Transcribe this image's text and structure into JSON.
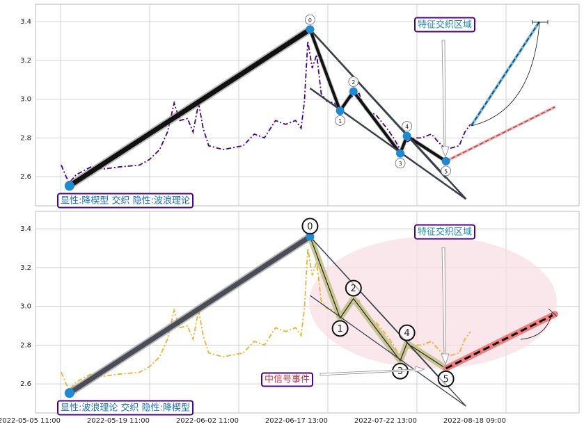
{
  "chart_data": [
    {
      "type": "line",
      "xlim": [
        -22.5,
        465.6
      ],
      "ylim": [
        2.45,
        3.49
      ],
      "yticks": [
        2.6,
        2.8,
        {
          "value": 3,
          "label": "3.0"
        },
        3.2,
        3.4
      ],
      "xgrid": [
        0,
        80,
        160,
        240,
        320,
        400
      ],
      "x": [
        0.6,
        5,
        8,
        14,
        27,
        39,
        52,
        71,
        80,
        89,
        96,
        102,
        107,
        114,
        119,
        124,
        128,
        133,
        146,
        164,
        174,
        183,
        193,
        202,
        211,
        216,
        219,
        222,
        226,
        230,
        234,
        239,
        246,
        251,
        255,
        261,
        268,
        274,
        283,
        293,
        299,
        305,
        311,
        318,
        324,
        333,
        339,
        346,
        352,
        358,
        363,
        368
      ],
      "series": [
        {
          "color": "#4b0082",
          "style": "dashdot",
          "values": [
            2.66,
            2.6,
            2.57,
            2.61,
            2.65,
            2.64,
            2.65,
            2.66,
            2.69,
            2.74,
            2.83,
            2.98,
            2.89,
            2.9,
            2.83,
            2.98,
            2.85,
            2.76,
            2.74,
            2.76,
            2.82,
            2.8,
            2.89,
            2.87,
            2.89,
            2.85,
            2.99,
            3.3,
            3.16,
            3.23,
            3.03,
            2.99,
            2.98,
            2.92,
            2.98,
            3.01,
            3.03,
            2.94,
            2.92,
            2.85,
            2.8,
            2.74,
            2.78,
            2.8,
            2.8,
            2.82,
            2.78,
            2.74,
            2.75,
            2.76,
            2.83,
            2.87
          ]
        }
      ],
      "lines": [
        {
          "x": [
            8,
            224
          ],
          "values": [
            2.553,
            3.36
          ],
          "color": "#111111",
          "style": "thick"
        },
        {
          "x": [
            224,
            251,
            263,
            305,
            311,
            346
          ],
          "values": [
            3.36,
            2.94,
            3.04,
            2.72,
            2.81,
            2.68
          ],
          "color": "#111111",
          "style": "thick"
        },
        {
          "x": [
            224,
            364
          ],
          "values": [
            3.36,
            2.485
          ],
          "color": "#3a3f4e",
          "style": "solid"
        },
        {
          "x": [
            224,
            364
          ],
          "values": [
            3.056,
            2.485
          ],
          "color": "#3a3f4e",
          "style": "solid"
        },
        {
          "x": [
            224,
            346
          ],
          "values": [
            3.36,
            2.593
          ],
          "color": "#3a3f4e",
          "style": "solid"
        },
        {
          "x": [
            369,
            430
          ],
          "values": [
            2.865,
            3.4
          ],
          "color": "#1f8ad0",
          "style": "dashed"
        },
        {
          "x": [
            346,
            444
          ],
          "values": [
            2.68,
            2.96
          ],
          "color": "#e07c7c",
          "style": "dashed"
        }
      ],
      "points": {
        "x": [
          8,
          224,
          251,
          263,
          305,
          311,
          346
        ],
        "values": [
          2.553,
          3.36,
          2.94,
          3.04,
          2.72,
          2.81,
          2.68
        ],
        "labels": [
          null,
          0,
          1,
          2,
          3,
          4,
          5
        ],
        "color": "#1f8ad0",
        "label_style": "small"
      },
      "annotations": {
        "pattern": "显性:降楔型 交织 隐性:波浪理论",
        "zone": "特征交织区域"
      }
    },
    {
      "type": "line",
      "xlim": [
        -22.5,
        465.6
      ],
      "ylim": [
        2.45,
        3.49
      ],
      "yticks": [
        2.6,
        2.8,
        {
          "value": 3,
          "label": "3.0"
        },
        3.2,
        3.4
      ],
      "xticks": [
        {
          "value": 0,
          "label": "2022-05-05 11:00"
        },
        {
          "value": 80,
          "label": "2022-05-19 11:00"
        },
        {
          "value": 160,
          "label": "2022-06-02 11:00"
        },
        {
          "value": 240,
          "label": "2022-06-17 13:00"
        },
        {
          "value": 320,
          "label": "2022-07-22 13:00"
        },
        {
          "value": 400,
          "label": "2022-08-18 09:00"
        }
      ],
      "x": [
        0.6,
        5,
        8,
        14,
        27,
        39,
        52,
        71,
        80,
        89,
        96,
        102,
        107,
        114,
        119,
        124,
        128,
        133,
        146,
        164,
        174,
        183,
        193,
        202,
        211,
        216,
        219,
        222,
        226,
        230,
        234,
        239,
        246,
        251,
        255,
        261,
        268,
        274,
        283,
        293,
        299,
        305,
        311,
        318,
        324,
        333,
        339,
        346,
        352,
        358,
        363,
        368
      ],
      "series": [
        {
          "color": "#f0b030",
          "style": "dashdot",
          "values": [
            2.66,
            2.6,
            2.57,
            2.61,
            2.65,
            2.64,
            2.65,
            2.66,
            2.69,
            2.74,
            2.83,
            2.98,
            2.89,
            2.9,
            2.83,
            2.98,
            2.85,
            2.76,
            2.74,
            2.76,
            2.82,
            2.8,
            2.89,
            2.87,
            2.89,
            2.85,
            2.99,
            3.3,
            3.16,
            3.23,
            3.03,
            2.99,
            2.98,
            2.92,
            2.98,
            3.01,
            3.03,
            2.94,
            2.92,
            2.85,
            2.8,
            2.74,
            2.78,
            2.8,
            2.8,
            2.82,
            2.78,
            2.74,
            2.75,
            2.76,
            2.83,
            2.87
          ]
        }
      ],
      "lines": [
        {
          "x": [
            8,
            224
          ],
          "values": [
            2.553,
            3.36
          ],
          "color": "#4a4d57",
          "style": "thick"
        },
        {
          "x": [
            224,
            251,
            263,
            305,
            311,
            346
          ],
          "values": [
            3.36,
            2.94,
            3.04,
            2.72,
            2.81,
            2.68
          ],
          "color": "#c3c28a",
          "style": "band"
        },
        {
          "x": [
            224,
            364
          ],
          "values": [
            3.36,
            2.485
          ],
          "color": "#3a3f4e",
          "style": "solid"
        },
        {
          "x": [
            224,
            364
          ],
          "values": [
            3.056,
            2.485
          ],
          "color": "#3a3f4e",
          "style": "solid"
        },
        {
          "x": [
            224,
            346
          ],
          "values": [
            3.36,
            2.593
          ],
          "color": "#3a3f4e",
          "style": "solid"
        },
        {
          "x": [
            346,
            444
          ],
          "values": [
            2.68,
            2.96
          ],
          "color": "#f08080",
          "style": "band-dashed"
        }
      ],
      "points": {
        "x": [
          8,
          224,
          251,
          263,
          305,
          311,
          346
        ],
        "values": [
          2.553,
          3.36,
          2.94,
          3.04,
          2.72,
          2.81,
          2.68
        ],
        "labels": [
          null,
          0,
          1,
          2,
          3,
          4,
          5
        ],
        "color": "#1f8ad0",
        "label_style": "large"
      },
      "annotations": {
        "pattern": "显性:波浪理论 交织 隐性:降楔型",
        "zone": "特征交织区域",
        "signal": "中信号事件"
      }
    }
  ]
}
